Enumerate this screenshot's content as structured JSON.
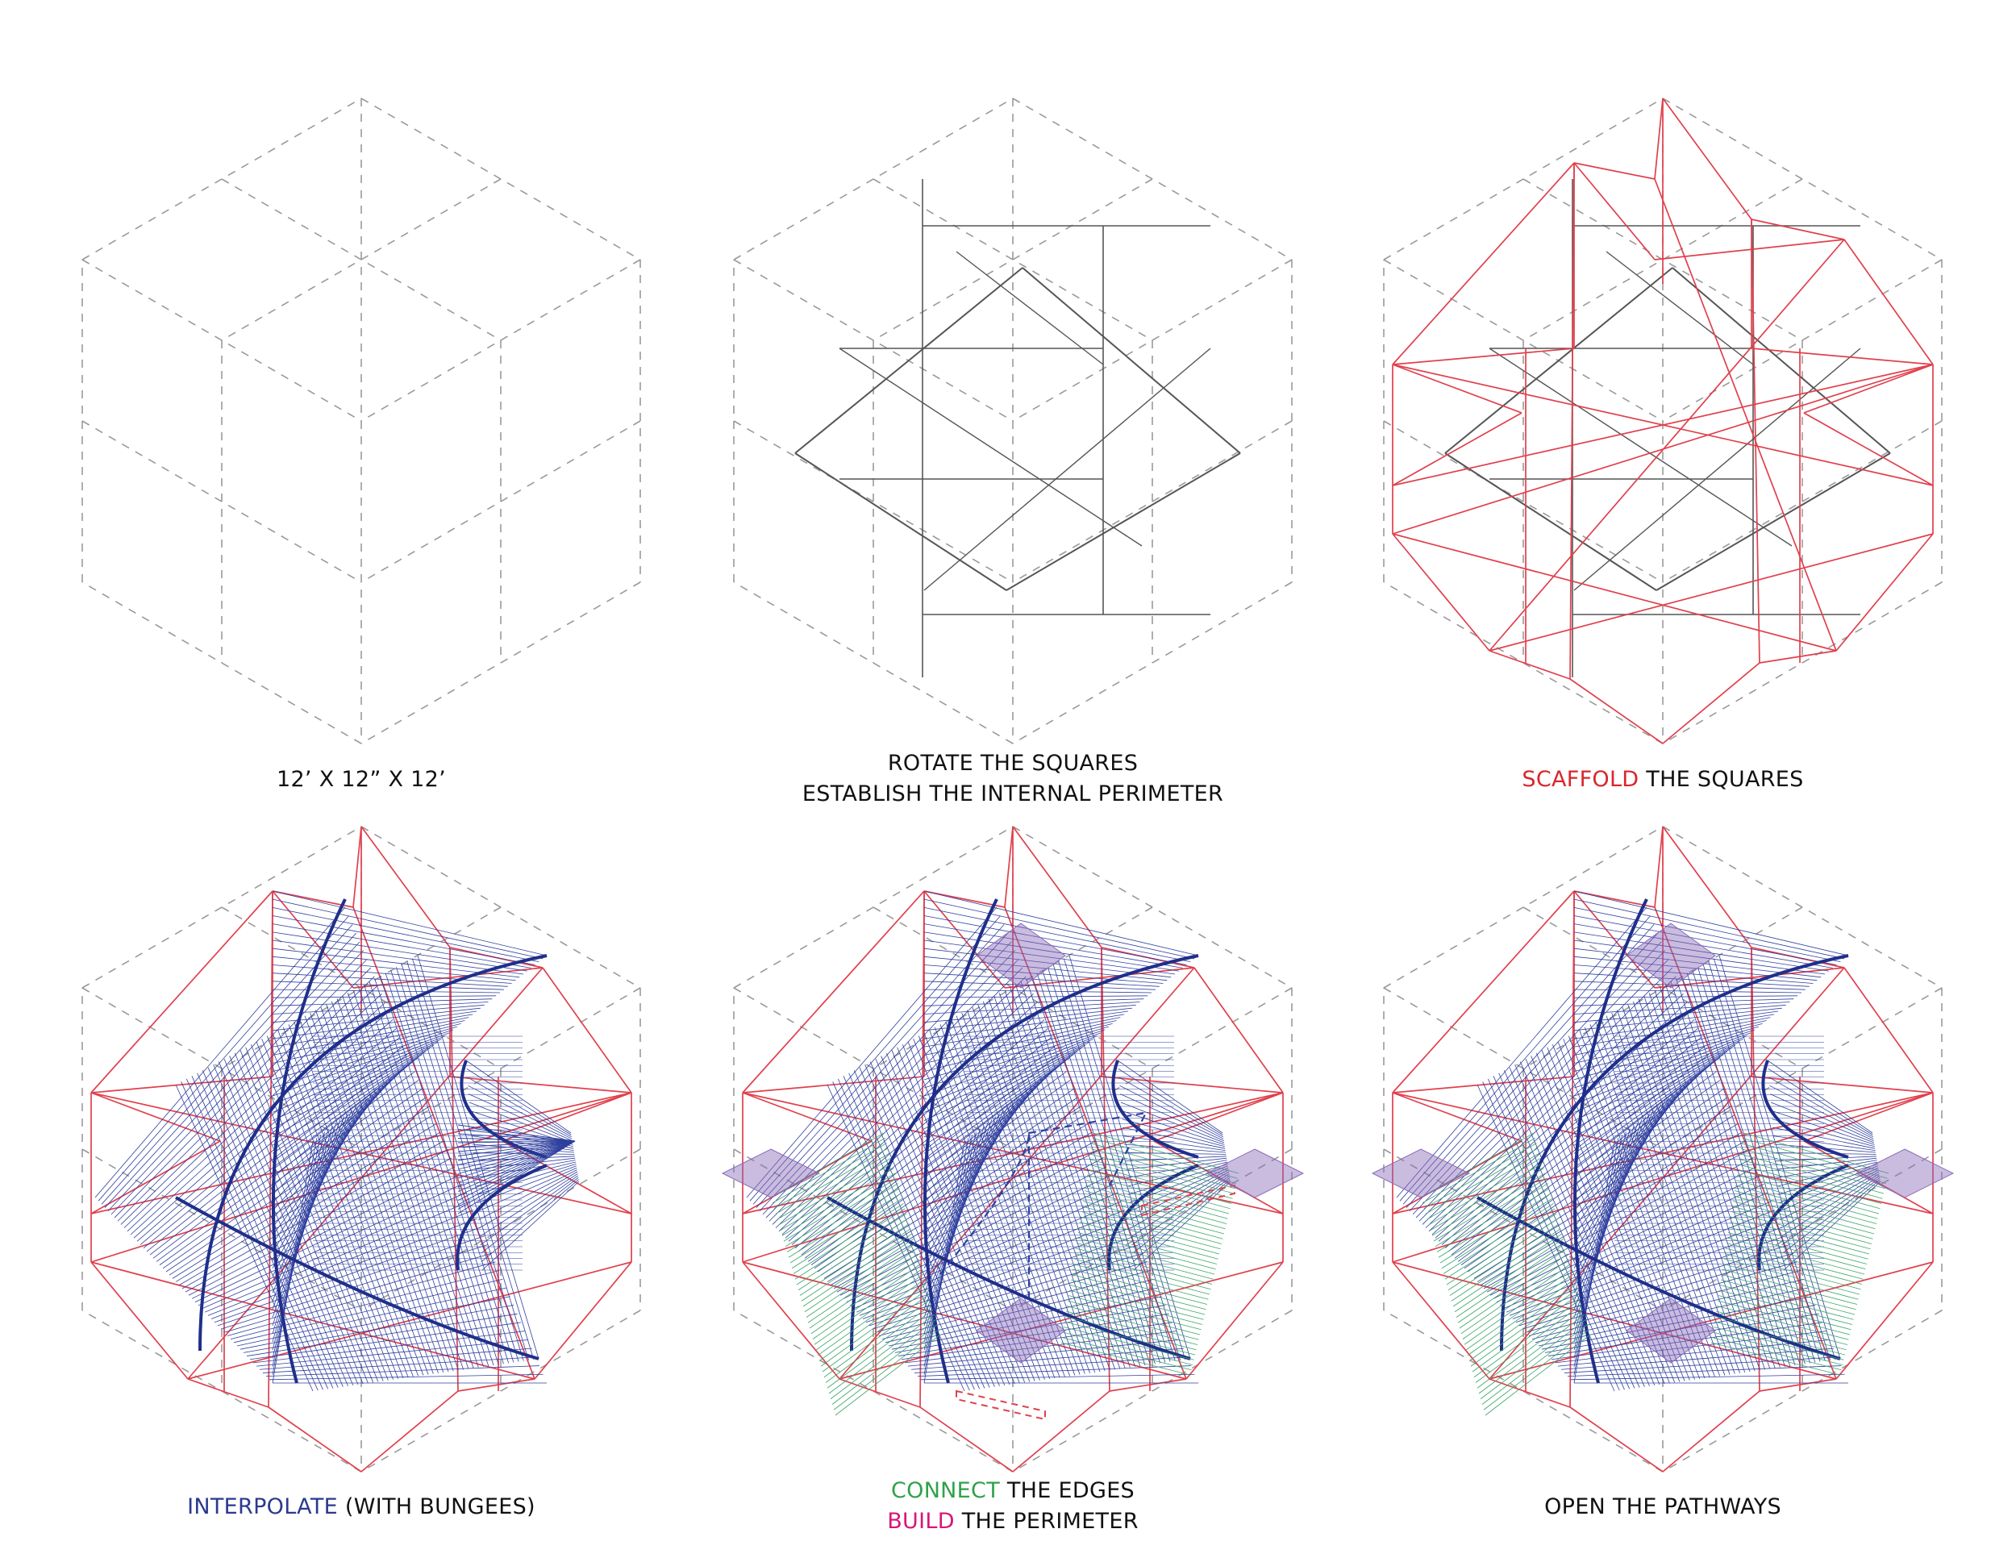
{
  "colors": {
    "guide": "#9a9a9a",
    "square": "#555555",
    "scaffold": "#e0404c",
    "bungee": "#2e3f9e",
    "edge": "#3aa66a",
    "perimeter": "#8a6bb8",
    "red_text": "#d9262c",
    "blue_text": "#2b3a8f",
    "green_text": "#2fa24a",
    "magenta_text": "#d6177a",
    "black_text": "#111111"
  },
  "panels": [
    {
      "id": "p1",
      "caption": {
        "lines": [
          [
            {
              "text": "12’ X 12” X 12’",
              "color": "black_text"
            }
          ]
        ]
      }
    },
    {
      "id": "p2",
      "caption": {
        "lines": [
          [
            {
              "text": "ROTATE THE SQUARES",
              "color": "black_text"
            }
          ],
          [
            {
              "text": "ESTABLISH THE INTERNAL PERIMETER",
              "color": "black_text"
            }
          ]
        ]
      }
    },
    {
      "id": "p3",
      "caption": {
        "lines": [
          [
            {
              "text": "SCAFFOLD",
              "color": "red_text"
            },
            {
              "text": " THE SQUARES",
              "color": "black_text"
            }
          ]
        ]
      }
    },
    {
      "id": "p4",
      "caption": {
        "lines": [
          [
            {
              "text": "INTERPOLATE",
              "color": "blue_text"
            },
            {
              "text": " (WITH BUNGEES)",
              "color": "black_text"
            }
          ]
        ]
      }
    },
    {
      "id": "p5",
      "caption": {
        "lines": [
          [
            {
              "text": "CONNECT",
              "color": "green_text"
            },
            {
              "text": " THE EDGES",
              "color": "black_text"
            }
          ],
          [
            {
              "text": "BUILD",
              "color": "magenta_text"
            },
            {
              "text": " THE PERIMETER",
              "color": "black_text"
            }
          ]
        ]
      }
    },
    {
      "id": "p6",
      "caption": {
        "lines": [
          [
            {
              "text": "OPEN THE PATHWAYS",
              "color": "black_text"
            }
          ]
        ]
      }
    }
  ]
}
